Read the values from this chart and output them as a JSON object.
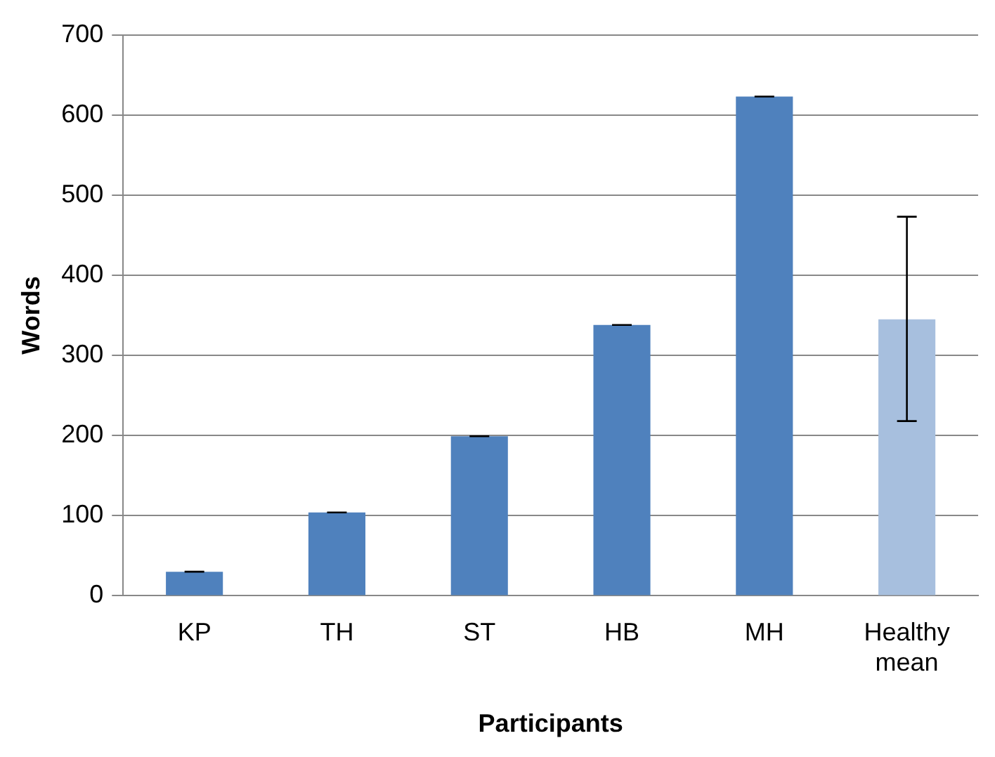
{
  "chart_data": {
    "type": "bar",
    "xlabel": "Participants",
    "ylabel": "Words",
    "categories": [
      "KP",
      "TH",
      "ST",
      "HB",
      "MH",
      "Healthy mean"
    ],
    "values": [
      30,
      104,
      199,
      338,
      623,
      345
    ],
    "colors": [
      "#4f81bd",
      "#4f81bd",
      "#4f81bd",
      "#4f81bd",
      "#4f81bd",
      "#a7bfde"
    ],
    "errors": [
      0,
      0,
      0,
      0,
      0,
      [
        218,
        473
      ]
    ],
    "ylim": [
      0,
      700
    ],
    "yticks": [
      0,
      100,
      200,
      300,
      400,
      500,
      600,
      700
    ],
    "grid": "y"
  }
}
